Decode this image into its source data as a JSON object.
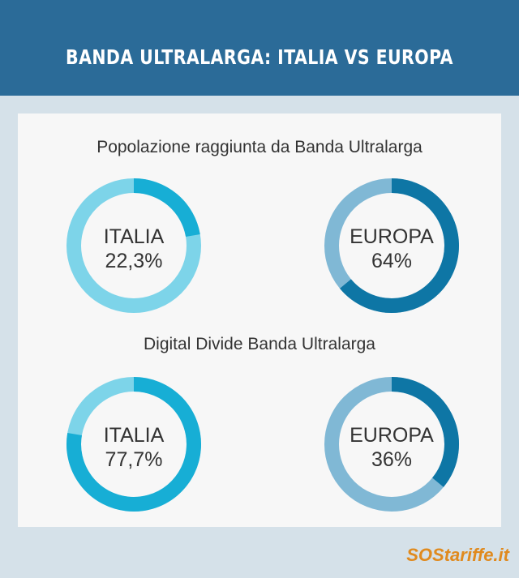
{
  "header": {
    "title": "BANDA ULTRALARGA: ITALIA VS EUROPA"
  },
  "chart_data": [
    {
      "type": "donut",
      "title": "Popolazione raggiunta da Banda Ultralarga",
      "categories": [
        "ITALIA",
        "EUROPA"
      ],
      "values": [
        22.3,
        64
      ],
      "value_labels": [
        "22,3%",
        "64%"
      ],
      "colors": [
        "#17aed5",
        "#0e76a5"
      ],
      "track_colors": [
        "#7dd4e9",
        "#80b8d5"
      ]
    },
    {
      "type": "donut",
      "title": "Digital Divide Banda Ultralarga",
      "categories": [
        "ITALIA",
        "EUROPA"
      ],
      "values": [
        77.7,
        36
      ],
      "value_labels": [
        "77,7%",
        "36%"
      ],
      "colors": [
        "#17aed5",
        "#0e76a5"
      ],
      "track_colors": [
        "#7dd4e9",
        "#80b8d5"
      ]
    }
  ],
  "footer": {
    "logo": "SOStariffe.it"
  }
}
